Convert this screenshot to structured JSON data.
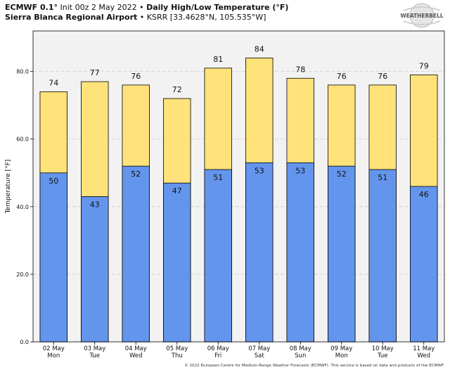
{
  "header": {
    "model": "ECMWF 0.1°",
    "init": "Init 00z 2 May 2022",
    "bullet": "•",
    "title": "Daily High/Low Temperature (°F)",
    "location": "Sierra Blanca Regional Airport",
    "station": "KSRR [33.4628°N, 105.535°W]"
  },
  "logo": {
    "text": "WEATHERBELL",
    "icon": "weatherbell-logo-icon"
  },
  "footer": "© 2022 European Centre for Medium-Range Weather Forecasts (ECMWF). This service is based on data and products of the ECMWF.",
  "colors": {
    "high_bar": "#ffe27a",
    "low_bar": "#6495ed",
    "plot_bg": "#f2f2f2",
    "grid": "#cccccc"
  },
  "chart_data": {
    "type": "bar",
    "categories": [
      "02 May\nMon",
      "03 May\nTue",
      "04 May\nWed",
      "05 May\nThu",
      "06 May\nFri",
      "07 May\nSat",
      "08 May\nSun",
      "09 May\nMon",
      "10 May\nTue",
      "11 May\nWed"
    ],
    "series": [
      {
        "values": [
          74,
          77,
          76,
          72,
          81,
          84,
          78,
          76,
          76,
          79
        ]
      },
      {
        "values": [
          50,
          43,
          52,
          47,
          51,
          53,
          53,
          52,
          51,
          46
        ]
      }
    ],
    "xlabel": "",
    "ylabel": "Temperature [°F]",
    "ylim": [
      0,
      92
    ],
    "yticks": [
      0,
      20,
      40,
      60,
      80
    ],
    "ytick_labels": [
      "0.0",
      "20.0",
      "40.0",
      "60.0",
      "80.0"
    ],
    "grid": true
  }
}
